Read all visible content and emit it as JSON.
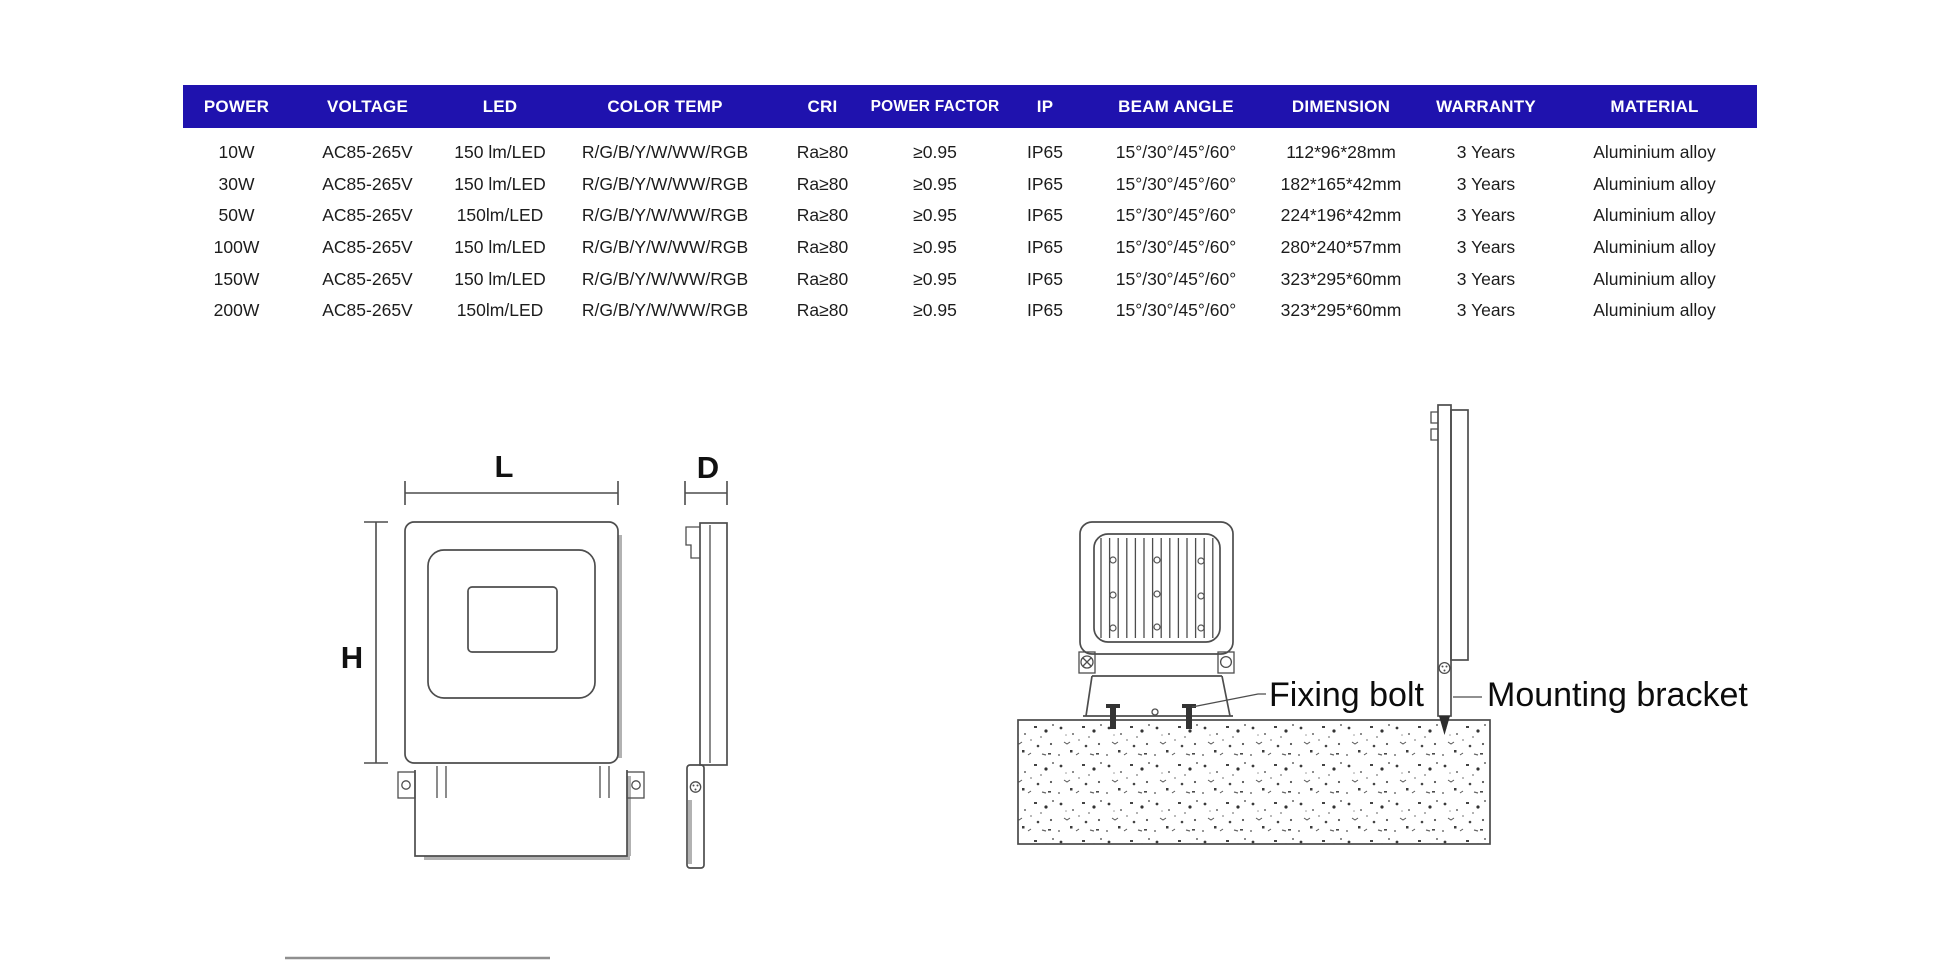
{
  "table": {
    "headers": [
      "POWER",
      "VOLTAGE",
      "LED",
      "COLOR TEMP",
      "CRI",
      "POWER FACTOR",
      "IP",
      "BEAM ANGLE",
      "DIMENSION",
      "WARRANTY",
      "MATERIAL"
    ],
    "rows": [
      [
        "10W",
        "AC85-265V",
        "150 lm/LED",
        "R/G/B/Y/W/WW/RGB",
        "Ra≥80",
        "≥0.95",
        "IP65",
        "15°/30°/45°/60°",
        "112*96*28mm",
        "3 Years",
        "Aluminium alloy"
      ],
      [
        "30W",
        "AC85-265V",
        "150 lm/LED",
        "R/G/B/Y/W/WW/RGB",
        "Ra≥80",
        "≥0.95",
        "IP65",
        "15°/30°/45°/60°",
        "182*165*42mm",
        "3 Years",
        "Aluminium alloy"
      ],
      [
        "50W",
        "AC85-265V",
        "150lm/LED",
        "R/G/B/Y/W/WW/RGB",
        "Ra≥80",
        "≥0.95",
        "IP65",
        "15°/30°/45°/60°",
        "224*196*42mm",
        "3 Years",
        "Aluminium alloy"
      ],
      [
        "100W",
        "AC85-265V",
        "150 lm/LED",
        "R/G/B/Y/W/WW/RGB",
        "Ra≥80",
        "≥0.95",
        "IP65",
        "15°/30°/45°/60°",
        "280*240*57mm",
        "3 Years",
        "Aluminium alloy"
      ],
      [
        "150W",
        "AC85-265V",
        "150 lm/LED",
        "R/G/B/Y/W/WW/RGB",
        "Ra≥80",
        "≥0.95",
        "IP65",
        "15°/30°/45°/60°",
        "323*295*60mm",
        "3 Years",
        "Aluminium alloy"
      ],
      [
        "200W",
        "AC85-265V",
        "150lm/LED",
        "R/G/B/Y/W/WW/RGB",
        "Ra≥80",
        "≥0.95",
        "IP65",
        "15°/30°/45°/60°",
        "323*295*60mm",
        "3 Years",
        "Aluminium alloy"
      ]
    ],
    "colors": {
      "header_bg": "#1f12ae",
      "header_fg": "#ffffff",
      "row_fg": "#1c1c1c"
    }
  },
  "diagram": {
    "length_label": "L",
    "height_label": "H",
    "depth_label": "D",
    "fixing_bolt_label": "Fixing bolt",
    "mounting_bracket_label": "Mounting bracket",
    "line_color": "#4d4d4d"
  }
}
